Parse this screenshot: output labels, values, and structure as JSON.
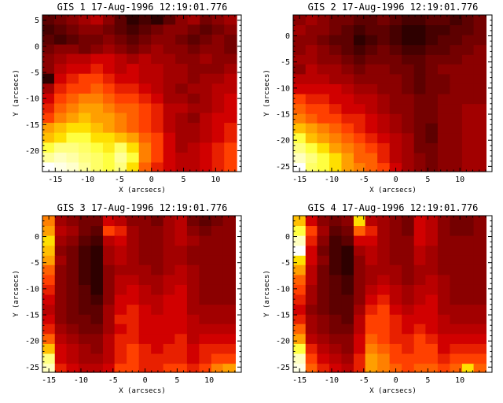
{
  "chart_data": [
    {
      "type": "heatmap",
      "title": "GIS 1 17-Aug-1996 12:19:01.776",
      "xlabel": "X (arcsecs)",
      "ylabel": "Y (arcsecs)",
      "xlim": [
        -17,
        14
      ],
      "ylim": [
        -24,
        6
      ],
      "xticks": [
        -15,
        -10,
        -5,
        0,
        5,
        10
      ],
      "yticks": [
        -20,
        -15,
        -10,
        -5,
        0,
        5
      ],
      "x_centers": [
        -16.1,
        -14.2,
        -12.3,
        -10.4,
        -8.5,
        -6.6,
        -4.8,
        -2.9,
        -1.0,
        0.9,
        2.8,
        4.7,
        6.6,
        8.5,
        10.4,
        12.3
      ],
      "y_centers": [
        5.1,
        3.2,
        1.3,
        -0.6,
        -2.4,
        -4.3,
        -6.2,
        -8.1,
        -10.0,
        -11.9,
        -13.7,
        -15.6,
        -17.5,
        -19.4,
        -21.3,
        -23.2
      ],
      "z": [
        [
          20,
          25,
          30,
          35,
          40,
          30,
          20,
          10,
          15,
          10,
          20,
          30,
          35,
          25,
          30,
          35
        ],
        [
          15,
          20,
          25,
          30,
          30,
          25,
          20,
          15,
          20,
          25,
          30,
          30,
          25,
          20,
          25,
          30
        ],
        [
          20,
          15,
          20,
          25,
          25,
          30,
          25,
          20,
          25,
          30,
          30,
          25,
          20,
          25,
          30,
          25
        ],
        [
          25,
          30,
          30,
          25,
          30,
          35,
          30,
          25,
          30,
          35,
          30,
          30,
          25,
          30,
          30,
          25
        ],
        [
          30,
          35,
          40,
          40,
          45,
          45,
          40,
          35,
          40,
          35,
          35,
          30,
          30,
          35,
          30,
          30
        ],
        [
          30,
          40,
          45,
          45,
          50,
          45,
          40,
          45,
          40,
          40,
          35,
          35,
          30,
          30,
          30,
          35
        ],
        [
          10,
          45,
          50,
          55,
          55,
          50,
          45,
          45,
          40,
          40,
          35,
          35,
          30,
          35,
          35,
          40
        ],
        [
          35,
          50,
          55,
          55,
          60,
          55,
          50,
          50,
          45,
          40,
          35,
          30,
          35,
          35,
          40,
          40
        ],
        [
          45,
          55,
          60,
          65,
          65,
          60,
          55,
          55,
          50,
          45,
          35,
          35,
          30,
          35,
          40,
          45
        ],
        [
          50,
          60,
          65,
          70,
          70,
          65,
          60,
          60,
          55,
          50,
          40,
          40,
          35,
          35,
          40,
          45
        ],
        [
          55,
          65,
          70,
          75,
          70,
          70,
          65,
          60,
          55,
          50,
          40,
          35,
          30,
          40,
          45,
          45
        ],
        [
          70,
          75,
          80,
          80,
          75,
          70,
          65,
          60,
          55,
          50,
          40,
          35,
          35,
          40,
          45,
          50
        ],
        [
          75,
          80,
          85,
          85,
          80,
          80,
          75,
          70,
          60,
          55,
          45,
          35,
          35,
          40,
          45,
          50
        ],
        [
          85,
          90,
          90,
          88,
          85,
          82,
          88,
          80,
          65,
          55,
          45,
          35,
          40,
          45,
          50,
          55
        ],
        [
          92,
          95,
          93,
          90,
          88,
          85,
          92,
          85,
          65,
          55,
          45,
          40,
          40,
          45,
          50,
          55
        ],
        [
          100,
          98,
          96,
          92,
          88,
          85,
          90,
          80,
          60,
          50,
          45,
          40,
          40,
          45,
          50,
          55
        ]
      ]
    },
    {
      "type": "heatmap",
      "title": "GIS 2 17-Aug-1996 12:19:01.776",
      "xlabel": "X (arcsecs)",
      "ylabel": "Y (arcsecs)",
      "xlim": [
        -16,
        15
      ],
      "ylim": [
        -26,
        4
      ],
      "xticks": [
        -15,
        -10,
        -5,
        0,
        5,
        10
      ],
      "yticks": [
        -25,
        -20,
        -15,
        -10,
        -5,
        0
      ],
      "x_centers": [
        -15.0,
        -13.1,
        -11.3,
        -9.4,
        -7.5,
        -5.6,
        -3.8,
        -1.9,
        0.0,
        1.9,
        3.8,
        5.6,
        7.5,
        9.4,
        11.3,
        13.1
      ],
      "y_centers": [
        3.0,
        1.1,
        -0.8,
        -2.7,
        -4.6,
        -6.4,
        -8.3,
        -10.2,
        -12.1,
        -14.0,
        -15.9,
        -17.7,
        -19.6,
        -21.5,
        -23.4,
        -25.3
      ],
      "z": [
        [
          30,
          35,
          30,
          25,
          25,
          20,
          20,
          25,
          20,
          15,
          15,
          20,
          20,
          15,
          20,
          25
        ],
        [
          35,
          30,
          30,
          25,
          20,
          15,
          20,
          20,
          15,
          10,
          10,
          15,
          15,
          20,
          20,
          25
        ],
        [
          30,
          30,
          25,
          20,
          20,
          10,
          15,
          20,
          15,
          10,
          10,
          15,
          20,
          20,
          25,
          25
        ],
        [
          30,
          35,
          30,
          25,
          20,
          15,
          20,
          25,
          20,
          15,
          15,
          20,
          20,
          25,
          25,
          30
        ],
        [
          35,
          35,
          30,
          30,
          25,
          20,
          25,
          25,
          25,
          20,
          20,
          25,
          25,
          25,
          30,
          30
        ],
        [
          30,
          40,
          35,
          35,
          30,
          25,
          30,
          30,
          25,
          25,
          20,
          25,
          30,
          30,
          30,
          30
        ],
        [
          40,
          40,
          40,
          35,
          35,
          30,
          30,
          30,
          30,
          25,
          20,
          25,
          25,
          30,
          30,
          30
        ],
        [
          45,
          45,
          45,
          45,
          40,
          35,
          35,
          30,
          30,
          25,
          20,
          25,
          25,
          30,
          30,
          30
        ],
        [
          55,
          50,
          50,
          45,
          45,
          40,
          40,
          35,
          30,
          30,
          25,
          25,
          30,
          30,
          30,
          30
        ],
        [
          60,
          55,
          55,
          50,
          45,
          45,
          40,
          35,
          30,
          30,
          25,
          25,
          30,
          30,
          35,
          35
        ],
        [
          65,
          60,
          55,
          55,
          50,
          50,
          45,
          40,
          35,
          30,
          25,
          25,
          30,
          30,
          35,
          35
        ],
        [
          75,
          70,
          65,
          60,
          55,
          50,
          45,
          40,
          35,
          30,
          25,
          20,
          30,
          30,
          35,
          35
        ],
        [
          85,
          75,
          70,
          65,
          60,
          55,
          50,
          45,
          40,
          35,
          25,
          20,
          30,
          30,
          35,
          35
        ],
        [
          90,
          85,
          80,
          70,
          65,
          60,
          55,
          50,
          40,
          35,
          25,
          25,
          30,
          30,
          35,
          35
        ],
        [
          95,
          90,
          85,
          80,
          70,
          60,
          60,
          50,
          40,
          35,
          30,
          25,
          30,
          30,
          35,
          35
        ],
        [
          100,
          88,
          85,
          80,
          70,
          65,
          60,
          55,
          45,
          35,
          30,
          25,
          30,
          30,
          35,
          35
        ]
      ]
    },
    {
      "type": "heatmap",
      "title": "GIS 3 17-Aug-1996 12:19:01.776",
      "xlabel": "X (arcsecs)",
      "ylabel": "Y (arcsecs)",
      "xlim": [
        -16,
        15
      ],
      "ylim": [
        -26,
        4
      ],
      "xticks": [
        -15,
        -10,
        -5,
        0,
        5,
        10
      ],
      "yticks": [
        -25,
        -20,
        -15,
        -10,
        -5,
        0
      ],
      "x_centers": [
        -15.0,
        -13.1,
        -11.3,
        -9.4,
        -7.5,
        -5.6,
        -3.8,
        -1.9,
        0.0,
        1.9,
        3.8,
        5.6,
        7.5,
        9.4,
        11.3,
        13.1
      ],
      "y_centers": [
        3.0,
        1.1,
        -0.8,
        -2.7,
        -4.6,
        -6.4,
        -8.3,
        -10.2,
        -12.1,
        -14.0,
        -15.9,
        -17.7,
        -19.6,
        -21.5,
        -23.4,
        -25.3
      ],
      "z": [
        [
          65,
          35,
          30,
          25,
          25,
          45,
          40,
          30,
          30,
          25,
          35,
          40,
          25,
          20,
          25,
          30
        ],
        [
          70,
          40,
          35,
          25,
          20,
          55,
          50,
          35,
          30,
          30,
          35,
          40,
          30,
          25,
          30,
          30
        ],
        [
          80,
          35,
          30,
          20,
          15,
          40,
          45,
          35,
          30,
          30,
          35,
          40,
          35,
          30,
          30,
          30
        ],
        [
          75,
          30,
          25,
          15,
          10,
          35,
          40,
          35,
          30,
          30,
          35,
          35,
          30,
          30,
          30,
          30
        ],
        [
          70,
          35,
          25,
          15,
          10,
          35,
          40,
          35,
          30,
          30,
          35,
          35,
          30,
          30,
          30,
          30
        ],
        [
          60,
          30,
          25,
          15,
          10,
          30,
          35,
          35,
          35,
          30,
          35,
          40,
          35,
          30,
          30,
          30
        ],
        [
          55,
          30,
          25,
          15,
          10,
          30,
          40,
          40,
          35,
          35,
          40,
          40,
          35,
          30,
          30,
          30
        ],
        [
          50,
          30,
          25,
          20,
          10,
          30,
          40,
          45,
          40,
          35,
          40,
          45,
          35,
          30,
          30,
          30
        ],
        [
          45,
          30,
          25,
          20,
          15,
          30,
          45,
          45,
          40,
          40,
          45,
          45,
          35,
          30,
          30,
          30
        ],
        [
          40,
          30,
          25,
          20,
          20,
          35,
          45,
          50,
          45,
          40,
          45,
          45,
          35,
          35,
          35,
          35
        ],
        [
          45,
          30,
          25,
          25,
          20,
          35,
          50,
          50,
          45,
          45,
          45,
          45,
          40,
          35,
          35,
          35
        ],
        [
          50,
          35,
          30,
          25,
          25,
          35,
          45,
          50,
          45,
          45,
          45,
          45,
          40,
          40,
          40,
          40
        ],
        [
          60,
          40,
          35,
          30,
          30,
          40,
          50,
          50,
          45,
          45,
          45,
          50,
          40,
          45,
          45,
          45
        ],
        [
          75,
          45,
          40,
          35,
          30,
          40,
          50,
          55,
          50,
          45,
          50,
          50,
          45,
          50,
          50,
          50
        ],
        [
          90,
          45,
          40,
          35,
          35,
          40,
          50,
          55,
          50,
          50,
          50,
          50,
          45,
          50,
          55,
          55
        ],
        [
          95,
          50,
          45,
          40,
          40,
          45,
          55,
          55,
          50,
          50,
          55,
          55,
          50,
          55,
          65,
          70
        ]
      ]
    },
    {
      "type": "heatmap",
      "title": "GIS 4 17-Aug-1996 12:19:01.776",
      "xlabel": "X (arcsecs)",
      "ylabel": "Y (arcsecs)",
      "xlim": [
        -16,
        15
      ],
      "ylim": [
        -26,
        4
      ],
      "xticks": [
        -15,
        -10,
        -5,
        0,
        5,
        10
      ],
      "yticks": [
        -25,
        -20,
        -15,
        -10,
        -5,
        0
      ],
      "x_centers": [
        -15.0,
        -13.1,
        -11.3,
        -9.4,
        -7.5,
        -5.6,
        -3.8,
        -1.9,
        0.0,
        1.9,
        3.8,
        5.6,
        7.5,
        9.4,
        11.3,
        13.1
      ],
      "y_centers": [
        3.0,
        1.1,
        -0.8,
        -2.7,
        -4.6,
        -6.4,
        -8.3,
        -10.2,
        -12.1,
        -14.0,
        -15.9,
        -17.7,
        -19.6,
        -21.5,
        -23.4,
        -25.3
      ],
      "z": [
        [
          75,
          45,
          30,
          25,
          30,
          80,
          40,
          35,
          30,
          25,
          45,
          40,
          30,
          25,
          25,
          30
        ],
        [
          85,
          55,
          35,
          20,
          25,
          60,
          50,
          35,
          30,
          25,
          45,
          40,
          30,
          25,
          25,
          30
        ],
        [
          95,
          50,
          30,
          15,
          20,
          45,
          45,
          35,
          30,
          30,
          45,
          40,
          30,
          30,
          30,
          30
        ],
        [
          100,
          45,
          25,
          15,
          10,
          35,
          40,
          35,
          30,
          30,
          40,
          35,
          30,
          30,
          30,
          30
        ],
        [
          80,
          45,
          30,
          15,
          10,
          30,
          40,
          35,
          30,
          30,
          40,
          35,
          30,
          30,
          30,
          30
        ],
        [
          70,
          40,
          25,
          15,
          10,
          30,
          35,
          35,
          35,
          30,
          35,
          35,
          30,
          30,
          30,
          30
        ],
        [
          60,
          40,
          25,
          20,
          15,
          30,
          35,
          40,
          35,
          30,
          35,
          40,
          35,
          30,
          30,
          30
        ],
        [
          55,
          35,
          25,
          20,
          15,
          30,
          40,
          45,
          40,
          35,
          40,
          40,
          35,
          30,
          30,
          30
        ],
        [
          50,
          35,
          25,
          20,
          20,
          30,
          45,
          50,
          40,
          35,
          40,
          45,
          35,
          30,
          30,
          30
        ],
        [
          45,
          30,
          25,
          20,
          20,
          35,
          50,
          55,
          45,
          40,
          45,
          45,
          35,
          35,
          35,
          35
        ],
        [
          50,
          35,
          30,
          25,
          20,
          40,
          55,
          55,
          50,
          45,
          45,
          45,
          40,
          35,
          35,
          35
        ],
        [
          60,
          35,
          30,
          25,
          25,
          40,
          55,
          55,
          50,
          45,
          50,
          45,
          40,
          40,
          40,
          40
        ],
        [
          70,
          40,
          35,
          30,
          30,
          45,
          60,
          55,
          50,
          50,
          55,
          50,
          45,
          45,
          45,
          45
        ],
        [
          85,
          50,
          40,
          35,
          30,
          45,
          65,
          60,
          55,
          50,
          55,
          55,
          45,
          50,
          50,
          50
        ],
        [
          95,
          55,
          45,
          40,
          35,
          50,
          70,
          65,
          55,
          55,
          55,
          55,
          50,
          55,
          55,
          55
        ],
        [
          98,
          60,
          50,
          45,
          40,
          50,
          70,
          65,
          60,
          55,
          60,
          60,
          55,
          60,
          80,
          60
        ]
      ]
    }
  ]
}
